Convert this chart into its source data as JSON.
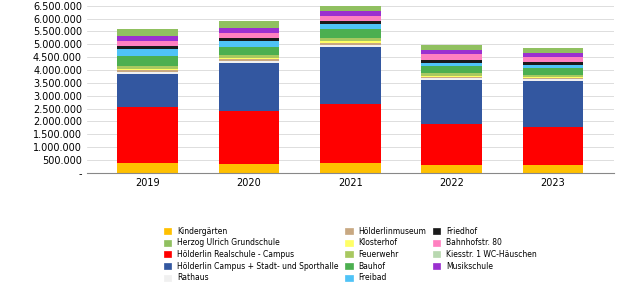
{
  "years": [
    "2019",
    "2020",
    "2021",
    "2022",
    "2023"
  ],
  "categories": [
    "Kindergärten",
    "Hölderlin Realschule - Campus",
    "Hölderlin Campus + Stadt- und Sporthalle",
    "Rathaus",
    "Hölderlinmuseum",
    "Klosterhof",
    "Feuerwehr",
    "Bauhof",
    "Freibad",
    "Friedhof",
    "Bahnhofstr. 80",
    "Kiesstr. 1 WC-Häuschen",
    "Musikschule",
    "Herzog Ulrich Grundschule"
  ],
  "colors": [
    "#FFC000",
    "#FF0000",
    "#3357A0",
    "#F0F0F0",
    "#C8A882",
    "#FFFF66",
    "#A8C860",
    "#4CAF50",
    "#4FC3F7",
    "#1A1A1A",
    "#FF80C0",
    "#B8D8B0",
    "#9B30D0",
    "#90C060"
  ],
  "values": {
    "Kindergärten": [
      380000,
      360000,
      370000,
      310000,
      290000
    ],
    "Hölderlin Realschule - Campus": [
      2180000,
      2050000,
      2290000,
      1570000,
      1480000
    ],
    "Hölderlin Campus + Stadt- und Sporthalle": [
      1300000,
      1870000,
      2220000,
      1750000,
      1820000
    ],
    "Rathaus": [
      55000,
      55000,
      90000,
      45000,
      45000
    ],
    "Hölderlinmuseum": [
      75000,
      75000,
      80000,
      55000,
      55000
    ],
    "Klosterhof": [
      65000,
      60000,
      75000,
      50000,
      50000
    ],
    "Feuerwehr": [
      95000,
      95000,
      115000,
      85000,
      85000
    ],
    "Bauhof": [
      390000,
      315000,
      340000,
      290000,
      265000
    ],
    "Freibad": [
      285000,
      245000,
      195000,
      125000,
      115000
    ],
    "Friedhof": [
      115000,
      125000,
      125000,
      115000,
      95000
    ],
    "Bahnhofstr. 80": [
      195000,
      195000,
      195000,
      215000,
      195000
    ],
    "Kiesstr. 1 WC-Häuschen": [
      8000,
      8000,
      8000,
      8000,
      8000
    ],
    "Musikschule": [
      195000,
      195000,
      195000,
      155000,
      155000
    ],
    "Herzog Ulrich Grundschule": [
      265000,
      275000,
      255000,
      205000,
      195000
    ]
  },
  "ylim": [
    0,
    6500000
  ],
  "yticks": [
    0,
    500000,
    1000000,
    1500000,
    2000000,
    2500000,
    3000000,
    3500000,
    4000000,
    4500000,
    5000000,
    5500000,
    6000000,
    6500000
  ],
  "ytick_labels": [
    "-",
    "500.000",
    "1.000.000",
    "1.500.000",
    "2.000.000",
    "2.500.000",
    "3.000.000",
    "3.500.000",
    "4.000.000",
    "4.500.000",
    "5.000.000",
    "5.500.000",
    "6.000.000",
    "6.500.000"
  ],
  "legend_order": [
    "Kindergärten",
    "Herzog Ulrich Grundschule",
    "Hölderlin Realschule - Campus",
    "Hölderlin Campus + Stadt- und Sporthalle",
    "Rathaus",
    "Hölderlinmuseum",
    "Klosterhof",
    "Feuerwehr",
    "Bauhof",
    "Freibad",
    "Friedhof",
    "Bahnhofstr. 80",
    "Kiesstr. 1 WC-Häuschen",
    "Musikschule"
  ],
  "background_color": "#FFFFFF",
  "grid_color": "#D0D0D0",
  "bar_width": 0.6,
  "figsize": [
    6.2,
    2.88
  ],
  "dpi": 100
}
